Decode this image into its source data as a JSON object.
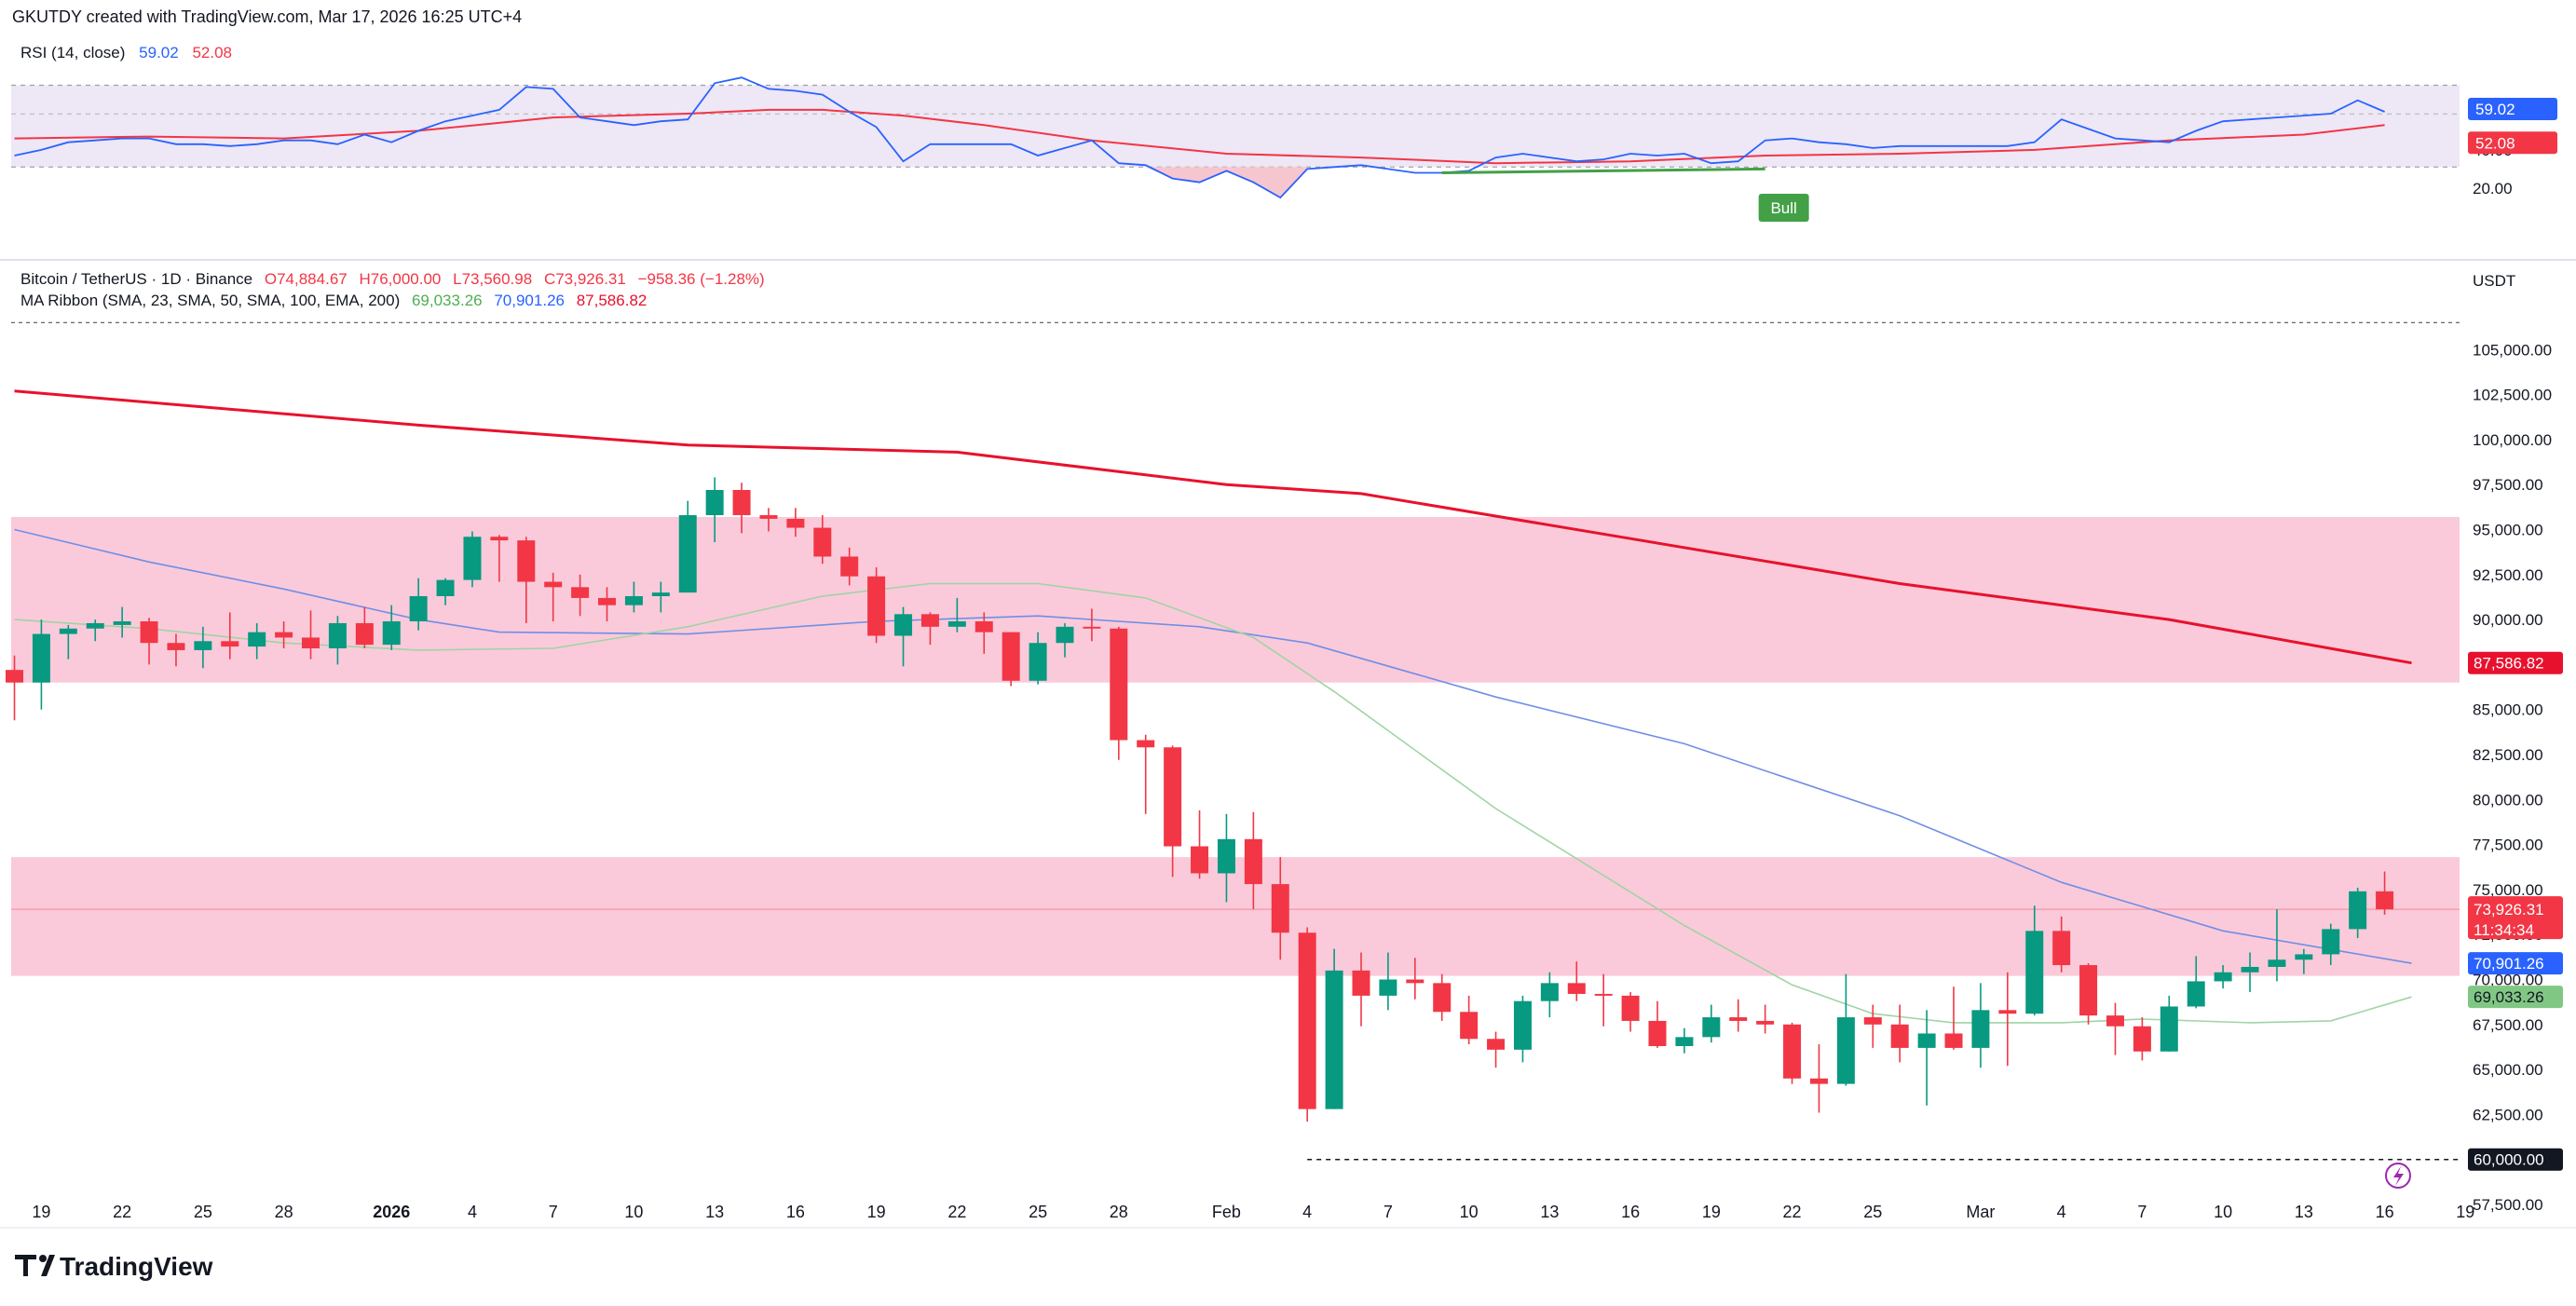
{
  "header": {
    "credit": "GKUTDY created with TradingView.com, Mar 17, 2026 16:25 UTC+4"
  },
  "footer": {
    "logo_text": "TradingView"
  },
  "rsi_panel": {
    "legend_name": "RSI (14, close)",
    "legend_rsi": "59.02",
    "legend_ma": "52.08",
    "label_rsi": "59.02",
    "label_ma": "52.08",
    "ticks": [
      "40.00",
      "20.00"
    ],
    "bull_label": "Bull"
  },
  "main_panel": {
    "symbol_legend": "Bitcoin / TetherUS · 1D · Binance",
    "ohlc": {
      "o": "O74,884.67",
      "h": "H76,000.00",
      "l": "L73,560.98",
      "c": "C73,926.31",
      "chg": "−958.36 (−1.28%)"
    },
    "ma_legend_name": "MA Ribbon (SMA, 23, SMA, 50, SMA, 100, EMA, 200)",
    "ma_values": [
      "69,033.26",
      "70,901.26",
      "87,586.82"
    ],
    "currency": "USDT",
    "price_ticks": [
      "105,000.00",
      "102,500.00",
      "100,000.00",
      "97,500.00",
      "95,000.00",
      "92,500.00",
      "90,000.00",
      "87,500.00",
      "85,000.00",
      "82,500.00",
      "80,000.00",
      "77,500.00",
      "75,000.00",
      "72,500.00",
      "70,000.00",
      "67,500.00",
      "65,000.00",
      "62,500.00",
      "60,000.00",
      "57,500.00"
    ],
    "labels": {
      "ema200": "87,586.82",
      "last_price": "73,926.31",
      "countdown": "11:34:34",
      "sma50": "70,901.26",
      "sma23": "69,033.26",
      "level60k": "60,000.00"
    }
  },
  "time_axis": {
    "labels": [
      {
        "t": "19",
        "i": 1
      },
      {
        "t": "22",
        "i": 4
      },
      {
        "t": "25",
        "i": 7
      },
      {
        "t": "28",
        "i": 10
      },
      {
        "t": "2026",
        "i": 14,
        "bold": true
      },
      {
        "t": "4",
        "i": 17
      },
      {
        "t": "7",
        "i": 20
      },
      {
        "t": "10",
        "i": 23
      },
      {
        "t": "13",
        "i": 26
      },
      {
        "t": "16",
        "i": 29
      },
      {
        "t": "19",
        "i": 32
      },
      {
        "t": "22",
        "i": 35
      },
      {
        "t": "25",
        "i": 38
      },
      {
        "t": "28",
        "i": 41
      },
      {
        "t": "Feb",
        "i": 45
      },
      {
        "t": "4",
        "i": 48
      },
      {
        "t": "7",
        "i": 51
      },
      {
        "t": "10",
        "i": 54
      },
      {
        "t": "13",
        "i": 57
      },
      {
        "t": "16",
        "i": 60
      },
      {
        "t": "19",
        "i": 63
      },
      {
        "t": "22",
        "i": 66
      },
      {
        "t": "25",
        "i": 69
      },
      {
        "t": "Mar",
        "i": 73
      },
      {
        "t": "4",
        "i": 76
      },
      {
        "t": "7",
        "i": 79
      },
      {
        "t": "10",
        "i": 82
      },
      {
        "t": "13",
        "i": 85
      },
      {
        "t": "16",
        "i": 88
      },
      {
        "t": "19",
        "i": 91
      }
    ]
  },
  "colors": {
    "up": "#089981",
    "down": "#f23645",
    "rsi_line": "#2962ff",
    "rsi_ma": "#f23645",
    "ema200": "#e8112d",
    "sma50": "#6f8ee6",
    "sma23": "#9fd4a4",
    "zone": "#f8bbd0",
    "rsi_bg": "#ede7f6",
    "bull": "#43a047"
  },
  "chart_data": {
    "type": "candlestick",
    "interval": "1D",
    "ylim": [
      56000,
      106000
    ],
    "rsi_ylim": [
      10,
      95
    ],
    "zones": [
      {
        "from": 86500,
        "to": 95700
      },
      {
        "from": 70200,
        "to": 76800
      }
    ],
    "reference_levels": [
      60000,
      106500
    ],
    "candles": [
      [
        87200,
        88000,
        84400,
        86500
      ],
      [
        86500,
        90000,
        85000,
        89200
      ],
      [
        89200,
        89700,
        87800,
        89500
      ],
      [
        89500,
        90000,
        88800,
        89800
      ],
      [
        89700,
        90700,
        89000,
        89900
      ],
      [
        89900,
        90100,
        87500,
        88700
      ],
      [
        88700,
        89200,
        87400,
        88300
      ],
      [
        88300,
        89600,
        87300,
        88800
      ],
      [
        88800,
        90400,
        87800,
        88500
      ],
      [
        88500,
        89800,
        87800,
        89300
      ],
      [
        89300,
        89900,
        88400,
        89000
      ],
      [
        89000,
        90500,
        87800,
        88400
      ],
      [
        88400,
        90200,
        87500,
        89800
      ],
      [
        89800,
        90700,
        88400,
        88600
      ],
      [
        88600,
        90800,
        88300,
        89900
      ],
      [
        89900,
        92300,
        89400,
        91300
      ],
      [
        91300,
        92300,
        90800,
        92200
      ],
      [
        92200,
        94900,
        91800,
        94600
      ],
      [
        94600,
        94700,
        92100,
        94400
      ],
      [
        94400,
        94600,
        89800,
        92100
      ],
      [
        92100,
        92600,
        89900,
        91800
      ],
      [
        91800,
        92500,
        90200,
        91200
      ],
      [
        91200,
        91800,
        89900,
        90800
      ],
      [
        90800,
        92100,
        90400,
        91300
      ],
      [
        91300,
        92100,
        90400,
        91500
      ],
      [
        91500,
        96600,
        91500,
        95800
      ],
      [
        95800,
        97900,
        94300,
        97200
      ],
      [
        97200,
        97600,
        94800,
        95800
      ],
      [
        95800,
        96200,
        94900,
        95600
      ],
      [
        95600,
        96200,
        94600,
        95100
      ],
      [
        95100,
        95800,
        93100,
        93500
      ],
      [
        93500,
        94000,
        91900,
        92400
      ],
      [
        92400,
        92900,
        88700,
        89100
      ],
      [
        89100,
        90700,
        87400,
        90300
      ],
      [
        90300,
        90400,
        88600,
        89600
      ],
      [
        89600,
        91200,
        89300,
        89900
      ],
      [
        89900,
        90400,
        88100,
        89300
      ],
      [
        89300,
        89300,
        86300,
        86600
      ],
      [
        86600,
        89300,
        86400,
        88700
      ],
      [
        88700,
        89800,
        87900,
        89600
      ],
      [
        89600,
        90600,
        88800,
        89500
      ],
      [
        89500,
        89600,
        82200,
        83300
      ],
      [
        83300,
        83600,
        79200,
        82900
      ],
      [
        82900,
        83000,
        75700,
        77400
      ],
      [
        77400,
        79400,
        75600,
        75900
      ],
      [
        75900,
        79200,
        74300,
        77800
      ],
      [
        77800,
        79300,
        73900,
        75300
      ],
      [
        75300,
        76800,
        71100,
        72600
      ],
      [
        72600,
        72900,
        62100,
        62800
      ],
      [
        62800,
        71700,
        62800,
        70500
      ],
      [
        70500,
        71500,
        67400,
        69100
      ],
      [
        69100,
        71500,
        68300,
        70000
      ],
      [
        70000,
        71200,
        68900,
        69800
      ],
      [
        69800,
        70300,
        67700,
        68200
      ],
      [
        68200,
        69100,
        66400,
        66700
      ],
      [
        66700,
        67100,
        65100,
        66100
      ],
      [
        66100,
        69100,
        65400,
        68800
      ],
      [
        68800,
        70400,
        67900,
        69800
      ],
      [
        69800,
        71000,
        68800,
        69200
      ],
      [
        69200,
        70300,
        67400,
        69100
      ],
      [
        69100,
        69300,
        67100,
        67700
      ],
      [
        67700,
        68800,
        66200,
        66300
      ],
      [
        66300,
        67300,
        65900,
        66800
      ],
      [
        66800,
        68600,
        66500,
        67900
      ],
      [
        67900,
        68900,
        67100,
        67700
      ],
      [
        67700,
        68600,
        67000,
        67500
      ],
      [
        67500,
        67600,
        64200,
        64500
      ],
      [
        64500,
        66400,
        62600,
        64200
      ],
      [
        64200,
        70300,
        64100,
        67900
      ],
      [
        67900,
        68600,
        66200,
        67500
      ],
      [
        67500,
        68600,
        65400,
        66200
      ],
      [
        66200,
        68300,
        63000,
        67000
      ],
      [
        67000,
        69600,
        66100,
        66200
      ],
      [
        66200,
        69800,
        65100,
        68300
      ],
      [
        68300,
        70400,
        65200,
        68100
      ],
      [
        68100,
        74100,
        68000,
        72700
      ],
      [
        72700,
        73500,
        70400,
        70800
      ],
      [
        70800,
        70900,
        67500,
        68000
      ],
      [
        68000,
        68700,
        65800,
        67400
      ],
      [
        67400,
        67900,
        65500,
        66000
      ],
      [
        66000,
        69100,
        66000,
        68500
      ],
      [
        68500,
        71300,
        68400,
        69900
      ],
      [
        69900,
        70800,
        69500,
        70400
      ],
      [
        70400,
        71500,
        69300,
        70700
      ],
      [
        70700,
        73900,
        69900,
        71100
      ],
      [
        71100,
        71700,
        70300,
        71400
      ],
      [
        71400,
        73100,
        70800,
        72800
      ],
      [
        72800,
        75100,
        72300,
        74900
      ],
      [
        74900,
        76000,
        73600,
        73900
      ]
    ],
    "series": [
      {
        "name": "EMA 200",
        "points": [
          [
            0,
            102700
          ],
          [
            15,
            100800
          ],
          [
            25,
            99700
          ],
          [
            35,
            99300
          ],
          [
            45,
            97500
          ],
          [
            50,
            97000
          ],
          [
            60,
            94500
          ],
          [
            70,
            92000
          ],
          [
            80,
            90000
          ],
          [
            89,
            87587
          ]
        ]
      },
      {
        "name": "SMA 50",
        "points": [
          [
            0,
            95000
          ],
          [
            5,
            93200
          ],
          [
            10,
            91700
          ],
          [
            15,
            90000
          ],
          [
            18,
            89300
          ],
          [
            25,
            89200
          ],
          [
            32,
            89900
          ],
          [
            38,
            90200
          ],
          [
            44,
            89600
          ],
          [
            48,
            88700
          ],
          [
            55,
            85700
          ],
          [
            62,
            83100
          ],
          [
            70,
            79100
          ],
          [
            76,
            75400
          ],
          [
            82,
            72700
          ],
          [
            89,
            70901
          ]
        ]
      },
      {
        "name": "SMA 23",
        "points": [
          [
            0,
            90000
          ],
          [
            5,
            89500
          ],
          [
            10,
            88700
          ],
          [
            15,
            88300
          ],
          [
            20,
            88400
          ],
          [
            25,
            89600
          ],
          [
            30,
            91300
          ],
          [
            34,
            92000
          ],
          [
            38,
            92000
          ],
          [
            42,
            91200
          ],
          [
            46,
            89000
          ],
          [
            49,
            86000
          ],
          [
            55,
            79500
          ],
          [
            62,
            73000
          ],
          [
            66,
            69700
          ],
          [
            69,
            68100
          ],
          [
            72,
            67600
          ],
          [
            76,
            67600
          ],
          [
            79,
            67800
          ],
          [
            83,
            67600
          ],
          [
            86,
            67700
          ],
          [
            89,
            69033
          ]
        ]
      }
    ],
    "rsi": [
      [
        0,
        36
      ],
      [
        1,
        39
      ],
      [
        2,
        43
      ],
      [
        3,
        44
      ],
      [
        4,
        45
      ],
      [
        5,
        45
      ],
      [
        6,
        42
      ],
      [
        7,
        42
      ],
      [
        8,
        41
      ],
      [
        9,
        42
      ],
      [
        10,
        44
      ],
      [
        11,
        44
      ],
      [
        12,
        42
      ],
      [
        13,
        47
      ],
      [
        14,
        43
      ],
      [
        15,
        49
      ],
      [
        16,
        54
      ],
      [
        17,
        57
      ],
      [
        18,
        60
      ],
      [
        19,
        72
      ],
      [
        20,
        71
      ],
      [
        21,
        56
      ],
      [
        22,
        54
      ],
      [
        23,
        52
      ],
      [
        24,
        54
      ],
      [
        25,
        55
      ],
      [
        26,
        74
      ],
      [
        27,
        77
      ],
      [
        28,
        71
      ],
      [
        29,
        70
      ],
      [
        30,
        68
      ],
      [
        31,
        59
      ],
      [
        32,
        51
      ],
      [
        33,
        33
      ],
      [
        34,
        42
      ],
      [
        35,
        42
      ],
      [
        36,
        42
      ],
      [
        37,
        42
      ],
      [
        38,
        36
      ],
      [
        39,
        40
      ],
      [
        40,
        44
      ],
      [
        41,
        32
      ],
      [
        42,
        31
      ],
      [
        43,
        24
      ],
      [
        44,
        22
      ],
      [
        45,
        28
      ],
      [
        46,
        22
      ],
      [
        47,
        14
      ],
      [
        48,
        29
      ],
      [
        49,
        30
      ],
      [
        50,
        31
      ],
      [
        51,
        29
      ],
      [
        52,
        27
      ],
      [
        53,
        27
      ],
      [
        54,
        28
      ],
      [
        55,
        35
      ],
      [
        56,
        37
      ],
      [
        57,
        35
      ],
      [
        58,
        33
      ],
      [
        59,
        34
      ],
      [
        60,
        37
      ],
      [
        61,
        36
      ],
      [
        62,
        37
      ],
      [
        63,
        32
      ],
      [
        64,
        33
      ],
      [
        65,
        44
      ],
      [
        66,
        45
      ],
      [
        67,
        43
      ],
      [
        68,
        42
      ],
      [
        69,
        40
      ],
      [
        70,
        41
      ],
      [
        71,
        41
      ],
      [
        72,
        41
      ],
      [
        73,
        41
      ],
      [
        74,
        41
      ],
      [
        75,
        43
      ],
      [
        76,
        55
      ],
      [
        77,
        50
      ],
      [
        78,
        45
      ],
      [
        79,
        44
      ],
      [
        80,
        43
      ],
      [
        81,
        49
      ],
      [
        82,
        54
      ],
      [
        83,
        55
      ],
      [
        84,
        56
      ],
      [
        85,
        57
      ],
      [
        86,
        58
      ],
      [
        87,
        65
      ],
      [
        88,
        59
      ]
    ],
    "rsi_ma": [
      [
        0,
        45
      ],
      [
        5,
        46
      ],
      [
        10,
        45
      ],
      [
        15,
        49
      ],
      [
        20,
        56
      ],
      [
        25,
        58
      ],
      [
        28,
        60
      ],
      [
        30,
        60
      ],
      [
        33,
        57
      ],
      [
        36,
        52
      ],
      [
        40,
        44
      ],
      [
        45,
        37
      ],
      [
        50,
        35
      ],
      [
        55,
        32
      ],
      [
        60,
        33
      ],
      [
        65,
        36
      ],
      [
        70,
        37
      ],
      [
        75,
        39
      ],
      [
        80,
        44
      ],
      [
        85,
        47
      ],
      [
        88,
        52
      ]
    ],
    "rsi_levels": {
      "upper": 70,
      "middle": 50,
      "lower": 30
    }
  }
}
